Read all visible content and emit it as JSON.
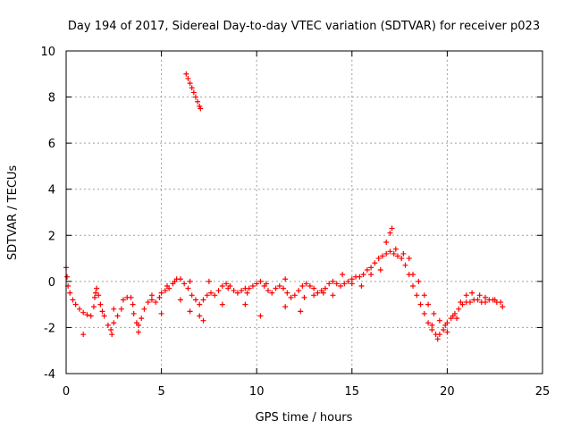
{
  "chart_data": {
    "type": "scatter",
    "title": "Day 194 of 2017, Sidereal Day-to-day VTEC variation (SDTVAR) for receiver p023",
    "xlabel": "GPS time / hours",
    "ylabel": "SDTVAR / TECUs",
    "xlim": [
      0,
      25
    ],
    "ylim": [
      -4,
      10
    ],
    "xticks": [
      0,
      5,
      10,
      15,
      20,
      25
    ],
    "yticks": [
      -4,
      -2,
      0,
      2,
      4,
      6,
      8,
      10
    ],
    "grid": true,
    "marker": "+",
    "color": "#ff0000",
    "series": [
      {
        "name": "main-track",
        "points": [
          [
            0.0,
            0.6
          ],
          [
            0.05,
            0.2
          ],
          [
            0.1,
            -0.2
          ],
          [
            0.2,
            -0.5
          ],
          [
            0.35,
            -0.8
          ],
          [
            0.5,
            -1.0
          ],
          [
            0.7,
            -1.2
          ],
          [
            0.9,
            -1.35
          ],
          [
            1.1,
            -1.45
          ],
          [
            1.3,
            -1.5
          ],
          [
            1.45,
            -1.1
          ],
          [
            1.55,
            -0.5
          ],
          [
            1.6,
            -0.3
          ],
          [
            1.7,
            -0.6
          ],
          [
            1.8,
            -1.0
          ],
          [
            1.9,
            -1.3
          ],
          [
            2.0,
            -1.5
          ],
          [
            2.2,
            -1.9
          ],
          [
            2.35,
            -2.1
          ],
          [
            2.5,
            -1.8
          ],
          [
            2.7,
            -1.5
          ],
          [
            2.9,
            -1.2
          ],
          [
            3.0,
            -0.8
          ],
          [
            3.2,
            -0.7
          ],
          [
            3.4,
            -0.7
          ],
          [
            3.55,
            -1.4
          ],
          [
            3.7,
            -1.8
          ],
          [
            3.8,
            -1.9
          ],
          [
            3.95,
            -1.6
          ],
          [
            4.1,
            -1.2
          ],
          [
            4.3,
            -0.9
          ],
          [
            4.5,
            -0.8
          ],
          [
            4.7,
            -0.9
          ],
          [
            4.9,
            -0.7
          ],
          [
            5.0,
            -0.5
          ],
          [
            5.2,
            -0.4
          ],
          [
            5.4,
            -0.3
          ],
          [
            5.6,
            -0.1
          ],
          [
            5.8,
            0.1
          ],
          [
            6.0,
            0.1
          ],
          [
            6.2,
            -0.1
          ],
          [
            6.4,
            -0.3
          ],
          [
            6.6,
            -0.6
          ],
          [
            6.8,
            -0.8
          ],
          [
            7.0,
            -1.0
          ],
          [
            7.2,
            -0.8
          ],
          [
            7.4,
            -0.6
          ],
          [
            7.6,
            -0.5
          ],
          [
            7.8,
            -0.6
          ],
          [
            8.0,
            -0.4
          ],
          [
            8.2,
            -0.2
          ],
          [
            8.4,
            -0.1
          ],
          [
            8.6,
            -0.2
          ],
          [
            8.8,
            -0.4
          ],
          [
            9.0,
            -0.5
          ],
          [
            9.2,
            -0.4
          ],
          [
            9.4,
            -0.3
          ],
          [
            9.6,
            -0.3
          ],
          [
            9.8,
            -0.2
          ],
          [
            10.0,
            -0.1
          ],
          [
            10.2,
            0.0
          ],
          [
            10.4,
            -0.2
          ],
          [
            10.6,
            -0.4
          ],
          [
            10.8,
            -0.5
          ],
          [
            11.0,
            -0.3
          ],
          [
            11.2,
            -0.2
          ],
          [
            11.4,
            -0.3
          ],
          [
            11.6,
            -0.5
          ],
          [
            11.8,
            -0.7
          ],
          [
            12.0,
            -0.6
          ],
          [
            12.2,
            -0.4
          ],
          [
            12.4,
            -0.2
          ],
          [
            12.6,
            -0.1
          ],
          [
            12.8,
            -0.2
          ],
          [
            13.0,
            -0.3
          ],
          [
            13.2,
            -0.5
          ],
          [
            13.4,
            -0.4
          ],
          [
            13.6,
            -0.3
          ],
          [
            13.8,
            -0.1
          ],
          [
            14.0,
            0.0
          ],
          [
            14.2,
            -0.1
          ],
          [
            14.4,
            -0.2
          ],
          [
            14.6,
            -0.1
          ],
          [
            14.8,
            0.0
          ],
          [
            15.0,
            0.1
          ],
          [
            15.2,
            0.2
          ],
          [
            15.4,
            0.2
          ],
          [
            15.6,
            0.3
          ],
          [
            15.8,
            0.5
          ],
          [
            16.0,
            0.6
          ],
          [
            16.2,
            0.8
          ],
          [
            16.4,
            1.0
          ],
          [
            16.6,
            1.1
          ],
          [
            16.8,
            1.2
          ],
          [
            17.0,
            1.3
          ],
          [
            17.2,
            1.2
          ],
          [
            17.4,
            1.1
          ],
          [
            17.6,
            1.0
          ],
          [
            17.8,
            0.7
          ],
          [
            18.0,
            0.3
          ],
          [
            18.2,
            -0.2
          ],
          [
            18.4,
            -0.6
          ],
          [
            18.6,
            -1.0
          ],
          [
            18.8,
            -1.4
          ],
          [
            19.0,
            -1.8
          ],
          [
            19.2,
            -2.1
          ],
          [
            19.4,
            -2.3
          ],
          [
            19.6,
            -2.3
          ],
          [
            19.8,
            -2.1
          ],
          [
            20.0,
            -1.8
          ],
          [
            20.2,
            -1.6
          ],
          [
            20.4,
            -1.4
          ],
          [
            20.6,
            -1.2
          ],
          [
            20.8,
            -1.0
          ],
          [
            21.0,
            -0.9
          ],
          [
            21.2,
            -0.9
          ],
          [
            21.4,
            -0.8
          ],
          [
            21.6,
            -0.8
          ],
          [
            21.8,
            -0.9
          ],
          [
            22.0,
            -0.9
          ],
          [
            22.2,
            -0.8
          ],
          [
            22.4,
            -0.8
          ],
          [
            22.6,
            -0.9
          ],
          [
            22.8,
            -0.9
          ]
        ]
      },
      {
        "name": "upper-track",
        "points": [
          [
            1.5,
            -0.7
          ],
          [
            2.5,
            -1.2
          ],
          [
            3.5,
            -1.0
          ],
          [
            4.5,
            -0.6
          ],
          [
            5.3,
            -0.2
          ],
          [
            5.7,
            0.0
          ],
          [
            6.5,
            0.0
          ],
          [
            7.5,
            0.0
          ],
          [
            8.5,
            -0.3
          ],
          [
            9.5,
            -0.5
          ],
          [
            10.5,
            -0.1
          ],
          [
            11.5,
            0.1
          ],
          [
            12.5,
            -0.7
          ],
          [
            13.5,
            -0.5
          ],
          [
            14.5,
            0.3
          ],
          [
            15.5,
            -0.2
          ],
          [
            16.5,
            0.5
          ],
          [
            16.8,
            1.7
          ],
          [
            17.0,
            2.1
          ],
          [
            17.1,
            2.3
          ],
          [
            17.3,
            1.4
          ],
          [
            17.7,
            1.2
          ],
          [
            18.0,
            1.0
          ],
          [
            18.2,
            0.3
          ],
          [
            18.5,
            0.0
          ],
          [
            18.8,
            -0.6
          ],
          [
            19.0,
            -1.0
          ],
          [
            19.3,
            -1.4
          ],
          [
            19.6,
            -1.7
          ],
          [
            19.9,
            -1.9
          ],
          [
            20.3,
            -1.5
          ],
          [
            20.7,
            -0.9
          ],
          [
            21.0,
            -0.6
          ],
          [
            21.3,
            -0.5
          ],
          [
            21.7,
            -0.6
          ],
          [
            22.0,
            -0.7
          ],
          [
            22.5,
            -0.8
          ],
          [
            22.9,
            -1.1
          ]
        ]
      },
      {
        "name": "lower-track",
        "points": [
          [
            0.9,
            -2.3
          ],
          [
            2.4,
            -2.3
          ],
          [
            3.8,
            -2.2
          ],
          [
            5.0,
            -1.4
          ],
          [
            6.0,
            -0.8
          ],
          [
            6.5,
            -1.3
          ],
          [
            7.0,
            -1.5
          ],
          [
            7.2,
            -1.7
          ],
          [
            8.2,
            -1.0
          ],
          [
            9.4,
            -1.0
          ],
          [
            10.2,
            -1.5
          ],
          [
            11.5,
            -1.1
          ],
          [
            12.3,
            -1.3
          ],
          [
            13.0,
            -0.6
          ],
          [
            14.0,
            -0.6
          ],
          [
            15.0,
            -0.1
          ],
          [
            16.0,
            0.3
          ],
          [
            19.2,
            -1.9
          ],
          [
            19.5,
            -2.5
          ],
          [
            20.0,
            -2.2
          ],
          [
            20.5,
            -1.6
          ]
        ]
      },
      {
        "name": "high-arc",
        "points": [
          [
            6.3,
            9.0
          ],
          [
            6.4,
            8.8
          ],
          [
            6.5,
            8.6
          ],
          [
            6.6,
            8.4
          ],
          [
            6.7,
            8.2
          ],
          [
            6.8,
            8.0
          ],
          [
            6.9,
            7.8
          ],
          [
            7.0,
            7.6
          ],
          [
            7.05,
            7.5
          ]
        ]
      }
    ]
  }
}
